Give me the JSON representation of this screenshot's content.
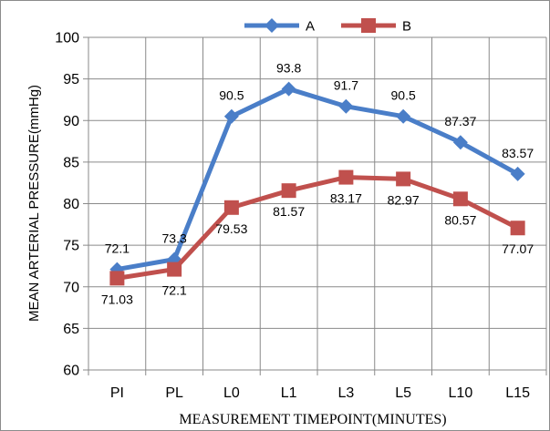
{
  "chart_data": {
    "type": "line",
    "title": "",
    "xlabel": "MEASUREMENT TIMEPOINT(MINUTES)",
    "ylabel": "MEAN ARTERIAL PRESSURE(mmHg)",
    "categories": [
      "PI",
      "PL",
      "L0",
      "L1",
      "L3",
      "L5",
      "L10",
      "L15"
    ],
    "ylim": [
      60,
      100
    ],
    "yticks": [
      "60",
      "65",
      "70",
      "75",
      "80",
      "85",
      "90",
      "95",
      "100"
    ],
    "grid": true,
    "legend_position": "top",
    "series": [
      {
        "name": "A",
        "color": "#4a7ec8",
        "marker": "diamond",
        "values": [
          72.1,
          73.3,
          90.5,
          93.8,
          91.7,
          90.5,
          87.37,
          83.57
        ],
        "labels": [
          "72.1",
          "73.3",
          "90.5",
          "93.8",
          "91.7",
          "90.5",
          "87.37",
          "83.57"
        ]
      },
      {
        "name": "B",
        "color": "#c0504d",
        "marker": "square",
        "values": [
          71.03,
          72.1,
          79.53,
          81.57,
          83.17,
          82.97,
          80.57,
          77.07
        ],
        "labels": [
          "71.03",
          "72.1",
          "79.53",
          "81.57",
          "83.17",
          "82.97",
          "80.57",
          "77.07"
        ]
      }
    ]
  }
}
